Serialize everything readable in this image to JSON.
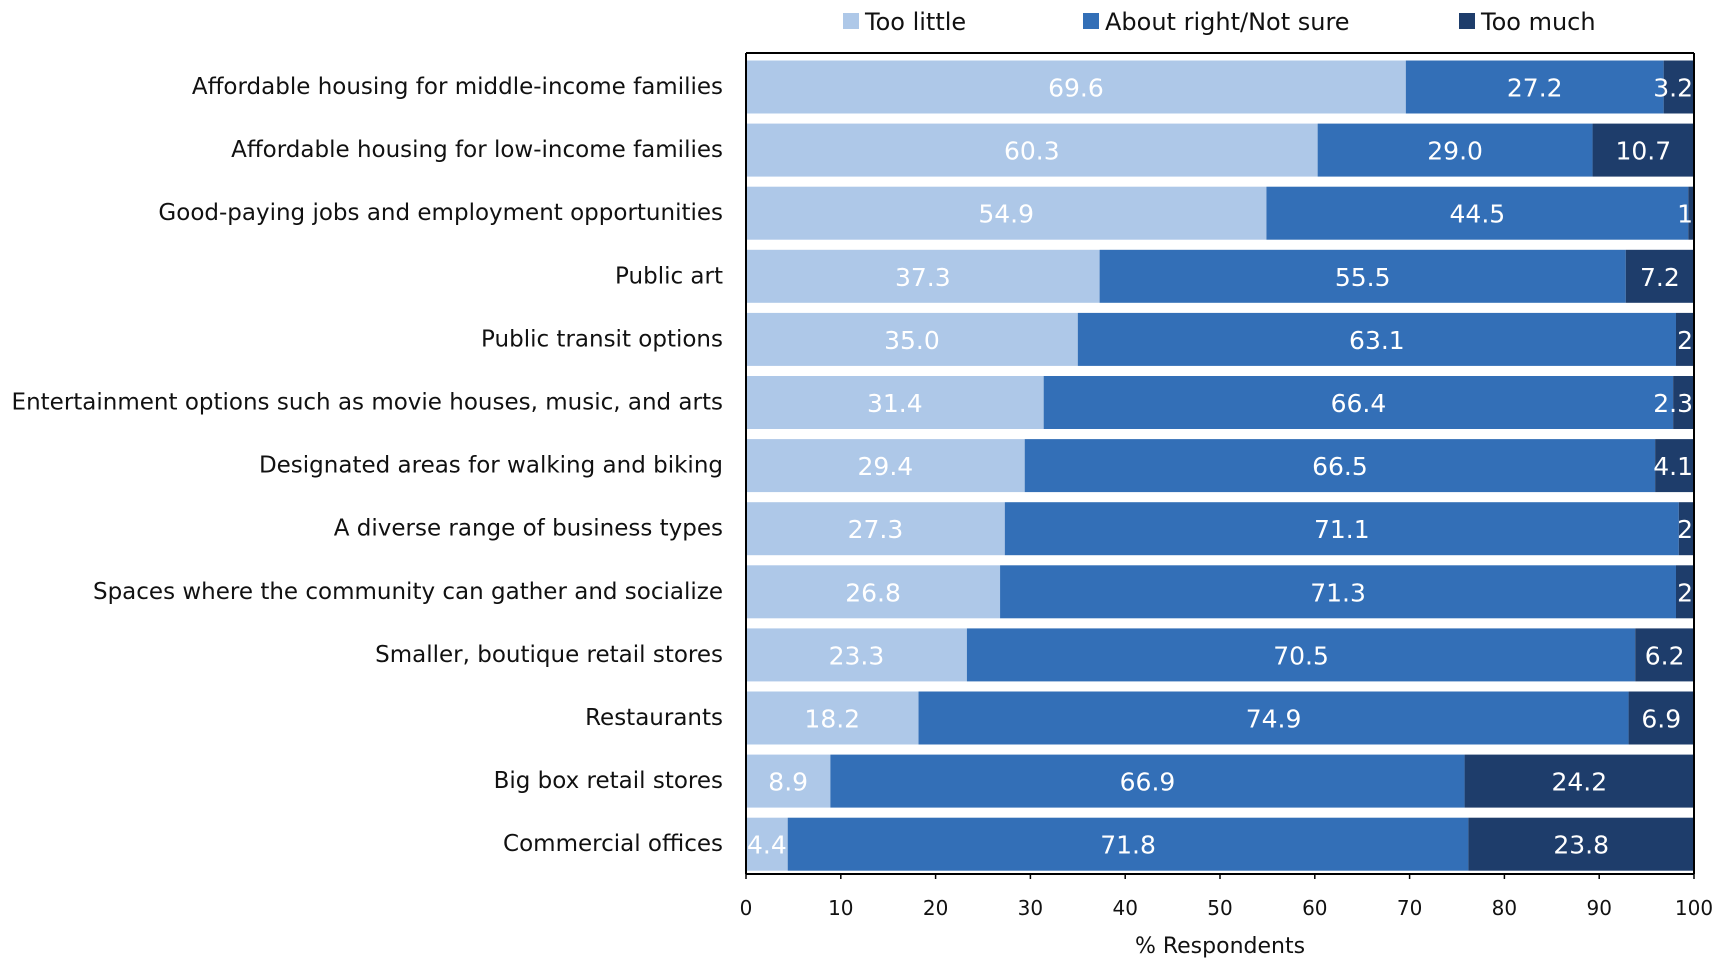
{
  "chart_data": {
    "type": "bar",
    "orientation": "horizontal",
    "stacked": true,
    "title": "",
    "xlabel": "% Respondents",
    "ylabel": "",
    "xlim": [
      0,
      100
    ],
    "xticks": [
      0,
      10,
      20,
      30,
      40,
      50,
      60,
      70,
      80,
      90,
      100
    ],
    "grid": false,
    "legend": "top",
    "categories": [
      "Affordable housing for middle-income families",
      "Affordable housing for low-income families",
      "Good-paying jobs and employment opportunities",
      "Public art",
      "Public transit options",
      "Entertainment options such as movie houses, music, and arts",
      "Designated areas for walking and biking",
      "A diverse range of business types",
      "Spaces where the community can gather and socialize",
      "Smaller, boutique retail stores",
      "Restaurants",
      "Big box retail stores",
      "Commercial offices"
    ],
    "series": [
      {
        "name": "Too little",
        "color": "#aec8e8",
        "values": [
          69.6,
          60.3,
          54.9,
          37.3,
          35.0,
          31.4,
          29.4,
          27.3,
          26.8,
          23.3,
          18.2,
          8.9,
          4.4
        ],
        "labels": [
          "69.6",
          "60.3",
          "54.9",
          "37.3",
          "35.0",
          "31.4",
          "29.4",
          "27.3",
          "26.8",
          "23.3",
          "18.2",
          "8.9",
          "4.4"
        ]
      },
      {
        "name": "About right/Not sure",
        "color": "#336fb7",
        "values": [
          27.2,
          29.0,
          44.5,
          55.5,
          63.1,
          66.4,
          66.5,
          71.1,
          71.3,
          70.5,
          74.9,
          66.9,
          71.8
        ],
        "labels": [
          "27.2",
          "29.0",
          "44.5",
          "55.5",
          "63.1",
          "66.4",
          "66.5",
          "71.1",
          "71.3",
          "70.5",
          "74.9",
          "66.9",
          "71.8"
        ]
      },
      {
        "name": "Too much",
        "color": "#1e3d6b",
        "values": [
          3.2,
          10.7,
          0.6,
          7.2,
          1.9,
          2.3,
          4.1,
          1.6,
          1.9,
          6.2,
          6.9,
          24.2,
          23.8
        ],
        "labels": [
          "3.2",
          "10.7",
          "1",
          "7.2",
          "2",
          "2.3",
          "4.1",
          "2",
          "2",
          "6.2",
          "6.9",
          "24.2",
          "23.8"
        ]
      }
    ]
  }
}
